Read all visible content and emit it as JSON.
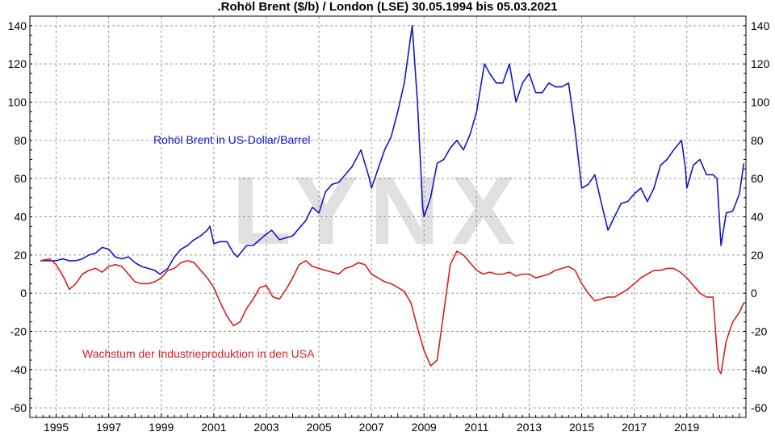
{
  "chart_data": {
    "type": "line",
    "title": ".Rohöl Brent ($/b) / London (LSE) 30.05.1994 bis 05.03.2021",
    "watermark": "LYNX",
    "xlim": [
      1994.0,
      2021.25
    ],
    "ylim": [
      -65,
      145
    ],
    "x_tick_labels": [
      "1995",
      "1997",
      "1999",
      "2001",
      "2003",
      "2005",
      "2007",
      "2009",
      "2011",
      "2013",
      "2015",
      "2017",
      "2019"
    ],
    "x_ticks": [
      1995,
      1997,
      1999,
      2001,
      2003,
      2005,
      2007,
      2009,
      2011,
      2013,
      2015,
      2017,
      2019
    ],
    "y_tick_labels": [
      "-60",
      "-40",
      "-20",
      "0",
      "20",
      "40",
      "60",
      "80",
      "100",
      "120",
      "140"
    ],
    "y_ticks": [
      -60,
      -40,
      -20,
      0,
      20,
      40,
      60,
      80,
      100,
      120,
      140
    ],
    "grid": true,
    "y_axis_both_sides": true,
    "series": [
      {
        "name": "Rohöl Brent in US-Dollar/Barrel",
        "color": "#1515c8",
        "x": [
          1994.4,
          1994.75,
          1995.0,
          1995.25,
          1995.5,
          1995.75,
          1996.0,
          1996.25,
          1996.5,
          1996.75,
          1997.0,
          1997.25,
          1997.5,
          1997.75,
          1998.0,
          1998.25,
          1998.5,
          1998.75,
          1998.95,
          1999.25,
          1999.5,
          1999.75,
          2000.0,
          2000.25,
          2000.5,
          2000.75,
          2000.85,
          2001.0,
          2001.25,
          2001.5,
          2001.75,
          2001.9,
          2002.25,
          2002.5,
          2002.75,
          2003.0,
          2003.2,
          2003.5,
          2003.75,
          2004.0,
          2004.25,
          2004.5,
          2004.75,
          2005.0,
          2005.25,
          2005.5,
          2005.75,
          2006.0,
          2006.25,
          2006.6,
          2006.9,
          2007.0,
          2007.25,
          2007.5,
          2007.75,
          2008.0,
          2008.25,
          2008.55,
          2008.75,
          2008.95,
          2009.0,
          2009.25,
          2009.5,
          2009.75,
          2010.0,
          2010.25,
          2010.5,
          2010.75,
          2011.0,
          2011.3,
          2011.5,
          2011.75,
          2012.0,
          2012.25,
          2012.5,
          2012.75,
          2013.0,
          2013.25,
          2013.5,
          2013.75,
          2014.0,
          2014.25,
          2014.5,
          2014.75,
          2015.0,
          2015.25,
          2015.5,
          2015.75,
          2016.0,
          2016.25,
          2016.5,
          2016.75,
          2017.0,
          2017.25,
          2017.5,
          2017.75,
          2018.0,
          2018.25,
          2018.5,
          2018.8,
          2018.95,
          2019.0,
          2019.25,
          2019.5,
          2019.75,
          2020.0,
          2020.15,
          2020.3,
          2020.5,
          2020.75,
          2021.0,
          2021.17
        ],
        "y": [
          17,
          17,
          17,
          18,
          17,
          17,
          18,
          20,
          21,
          24,
          23,
          19,
          18,
          19,
          16,
          14,
          13,
          12,
          10,
          13,
          19,
          23,
          25,
          28,
          30,
          33,
          35,
          26,
          27,
          27,
          21,
          19,
          25,
          25,
          28,
          31,
          33,
          28,
          29,
          30,
          34,
          38,
          45,
          42,
          53,
          57,
          58,
          62,
          66,
          75,
          61,
          55,
          65,
          75,
          82,
          95,
          110,
          140,
          100,
          45,
          40,
          50,
          68,
          70,
          76,
          80,
          75,
          83,
          95,
          120,
          115,
          110,
          110,
          120,
          100,
          110,
          115,
          105,
          105,
          110,
          108,
          108,
          110,
          85,
          55,
          57,
          62,
          47,
          33,
          40,
          47,
          48,
          52,
          55,
          48,
          55,
          67,
          70,
          75,
          80,
          65,
          55,
          67,
          70,
          62,
          62,
          60,
          25,
          42,
          43,
          52,
          68
        ]
      },
      {
        "name": "Wachstum der Industrieproduktion in den USA",
        "color": "#dc1e1e",
        "x": [
          1994.4,
          1994.75,
          1995.0,
          1995.3,
          1995.5,
          1995.75,
          1996.0,
          1996.25,
          1996.5,
          1996.75,
          1997.0,
          1997.25,
          1997.5,
          1997.75,
          1998.0,
          1998.25,
          1998.5,
          1998.75,
          1999.0,
          1999.25,
          1999.5,
          1999.75,
          2000.0,
          2000.25,
          2000.5,
          2000.75,
          2001.0,
          2001.25,
          2001.5,
          2001.75,
          2002.0,
          2002.25,
          2002.5,
          2002.75,
          2003.0,
          2003.25,
          2003.5,
          2003.75,
          2004.0,
          2004.25,
          2004.5,
          2004.75,
          2005.0,
          2005.25,
          2005.5,
          2005.75,
          2006.0,
          2006.25,
          2006.5,
          2006.75,
          2007.0,
          2007.25,
          2007.5,
          2007.75,
          2008.0,
          2008.25,
          2008.5,
          2008.75,
          2009.0,
          2009.25,
          2009.5,
          2009.75,
          2010.0,
          2010.25,
          2010.5,
          2010.75,
          2011.0,
          2011.25,
          2011.5,
          2011.75,
          2012.0,
          2012.25,
          2012.5,
          2012.75,
          2013.0,
          2013.25,
          2013.5,
          2013.75,
          2014.0,
          2014.25,
          2014.5,
          2014.75,
          2015.0,
          2015.25,
          2015.5,
          2015.75,
          2016.0,
          2016.25,
          2016.5,
          2016.75,
          2017.0,
          2017.25,
          2017.5,
          2017.75,
          2018.0,
          2018.25,
          2018.5,
          2018.75,
          2019.0,
          2019.25,
          2019.5,
          2019.75,
          2020.0,
          2020.2,
          2020.3,
          2020.5,
          2020.75,
          2021.0,
          2021.17
        ],
        "y": [
          17,
          18,
          15,
          8,
          2,
          5,
          10,
          12,
          13,
          11,
          14,
          15,
          14,
          10,
          6,
          5,
          5,
          6,
          8,
          12,
          13,
          16,
          17,
          16,
          12,
          8,
          3,
          -5,
          -12,
          -17,
          -15,
          -8,
          -3,
          3,
          4,
          -2,
          -3,
          2,
          8,
          15,
          17,
          14,
          13,
          12,
          11,
          10,
          13,
          14,
          16,
          15,
          10,
          8,
          6,
          5,
          3,
          1,
          -5,
          -18,
          -30,
          -38,
          -35,
          -10,
          15,
          22,
          20,
          16,
          12,
          10,
          11,
          10,
          10,
          11,
          9,
          10,
          10,
          8,
          9,
          10,
          12,
          13,
          14,
          12,
          5,
          0,
          -4,
          -3,
          -2,
          -2,
          0,
          2,
          5,
          8,
          10,
          12,
          12,
          13,
          13,
          11,
          8,
          4,
          0,
          -2,
          -2,
          -40,
          -42,
          -25,
          -15,
          -10,
          -5
        ]
      }
    ],
    "annotations": [
      {
        "text": "Rohöl Brent in US-Dollar/Barrel",
        "color": "#1515c8"
      },
      {
        "text": "Wachstum der Industrieproduktion in den USA",
        "color": "#dc1e1e"
      }
    ]
  }
}
